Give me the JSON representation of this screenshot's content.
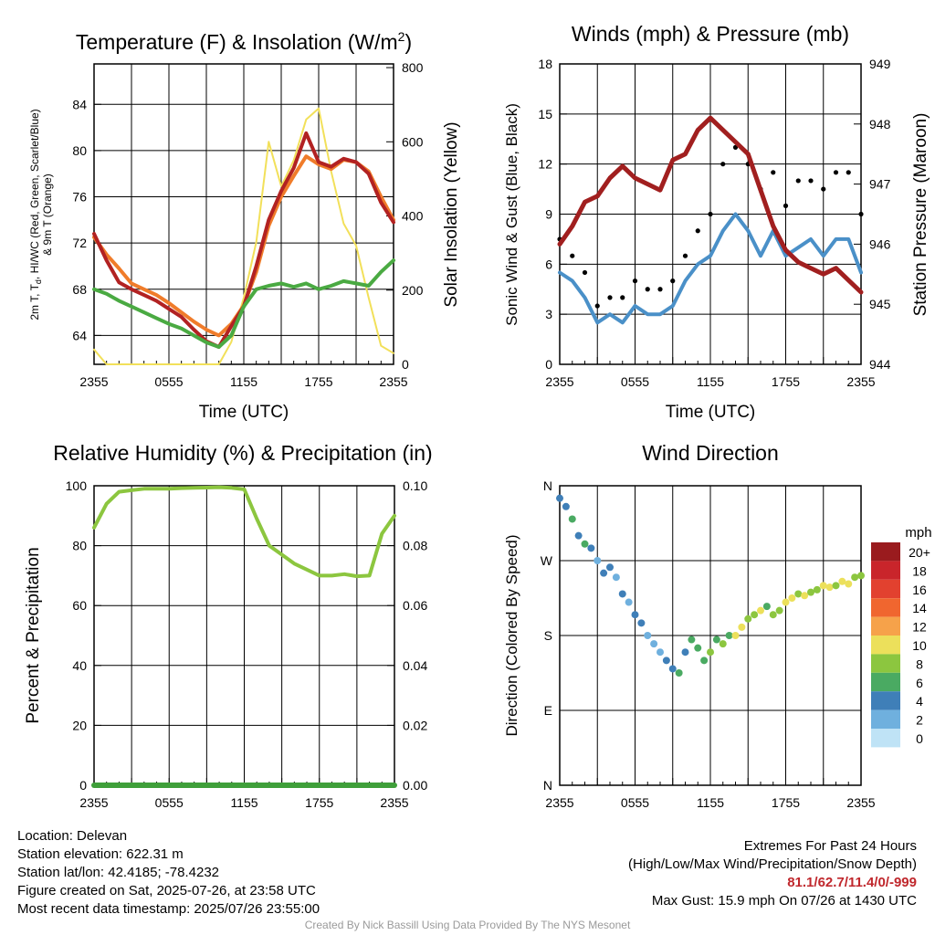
{
  "panels": {
    "temperature": {
      "title_main": "Temperature (F) & Insolation (W/m",
      "title_sup": "2",
      "title_end": ")",
      "ylabel_line1": "2m T, T",
      "ylabel_sub": "d",
      "ylabel_line1_end": ", HI/WC (Red, Green, Scarlet/Blue)",
      "ylabel_line2": "& 9m T (Orange)",
      "y2label": "Solar Insolation (Yellow)",
      "xlabel": "Time (UTC)"
    },
    "winds": {
      "title": "Winds (mph) & Pressure (mb)",
      "ylabel": "Sonic Wind & Gust (Blue, Black)",
      "y2label": "Station Pressure (Maroon)",
      "xlabel": "Time (UTC)"
    },
    "humidity": {
      "title": "Relative Humidity (%) & Precipitation (in)",
      "ylabel": "Percent & Precipitation"
    },
    "direction": {
      "title": "Wind Direction",
      "ylabel": "Direction (Colored By Speed)",
      "legend_title": "mph"
    }
  },
  "info": {
    "location": "Location: Delevan",
    "elevation": "Station elevation: 622.31 m",
    "latlon": "Station lat/lon: 42.4185; -78.4232",
    "created": "Figure created on Sat, 2025-07-26, at 23:58 UTC",
    "recent": "Most recent data timestamp: 2025/07/26 23:55:00"
  },
  "extremes": {
    "title": "Extremes For Past 24 Hours",
    "subtitle": "(High/Low/Max Wind/Precipitation/Snow Depth)",
    "values": "81.1/62.7/11.4/0/-999",
    "gust": "Max Gust: 15.9 mph On 07/26 at 1430 UTC"
  },
  "credit": "Created By Nick Bassill Using Data Provided By The NYS Mesonet",
  "chart_data": [
    {
      "type": "line",
      "title": "Temperature (F) & Insolation (W/m2)",
      "xlabel": "Time (UTC)",
      "ylabel": "2m T, Td, HI/WC (Red, Green, Scarlet/Blue) & 9m T (Orange)",
      "y2label": "Solar Insolation (Yellow)",
      "x_ticks": [
        "2355",
        "0555",
        "1155",
        "1755",
        "2355"
      ],
      "x_hours": [
        0,
        3,
        6,
        9,
        12,
        15,
        18,
        21,
        24
      ],
      "ylim": [
        61.5,
        87.5
      ],
      "y_ticks": [
        64,
        68,
        72,
        76,
        80,
        84
      ],
      "y2lim": [
        0,
        810
      ],
      "y2_ticks": [
        0,
        200,
        400,
        600,
        800
      ],
      "colors": {
        "temp": "#b22222",
        "temp9m": "#f07c2a",
        "dewpoint": "#4aaa42",
        "solar": "#f2e05a"
      },
      "series": [
        {
          "name": "2m T",
          "axis": "left",
          "x": [
            0,
            1,
            2,
            3,
            4,
            5,
            6,
            7,
            8,
            9,
            10,
            11,
            12,
            13,
            14,
            15,
            16,
            17,
            18,
            19,
            20,
            21,
            22,
            23,
            24
          ],
          "values": [
            72.8,
            70.5,
            68.6,
            68.0,
            67.5,
            67.0,
            66.3,
            65.6,
            64.5,
            63.5,
            63.0,
            64.8,
            66.5,
            70.0,
            74.0,
            76.5,
            78.5,
            81.5,
            79.0,
            78.6,
            79.3,
            79.0,
            78.0,
            75.5,
            73.8
          ]
        },
        {
          "name": "9m T",
          "axis": "left",
          "x": [
            0,
            1,
            2,
            3,
            4,
            5,
            6,
            7,
            8,
            9,
            10,
            11,
            12,
            13,
            14,
            15,
            16,
            17,
            18,
            19,
            20,
            21,
            22,
            23,
            24
          ],
          "values": [
            72.5,
            71.0,
            69.8,
            68.5,
            68.0,
            67.5,
            66.8,
            66.0,
            65.2,
            64.5,
            64.0,
            65.0,
            66.6,
            69.5,
            73.5,
            76.0,
            77.8,
            79.5,
            78.8,
            78.4,
            79.2,
            79.0,
            78.2,
            76.0,
            74.0
          ]
        },
        {
          "name": "2m Td",
          "axis": "left",
          "x": [
            0,
            1,
            2,
            3,
            4,
            5,
            6,
            7,
            8,
            9,
            10,
            11,
            12,
            13,
            14,
            15,
            16,
            17,
            18,
            19,
            20,
            21,
            22,
            23,
            24
          ],
          "values": [
            68.0,
            67.6,
            67.0,
            66.5,
            66.0,
            65.5,
            65.0,
            64.6,
            64.0,
            63.4,
            63.0,
            64.0,
            66.5,
            68.0,
            68.3,
            68.5,
            68.2,
            68.5,
            68.0,
            68.3,
            68.7,
            68.5,
            68.3,
            69.5,
            70.5
          ]
        },
        {
          "name": "Solar Insolation",
          "axis": "right",
          "x": [
            0,
            1,
            2,
            3,
            4,
            5,
            6,
            7,
            8,
            9,
            10,
            11,
            12,
            13,
            14,
            15,
            16,
            17,
            18,
            19,
            20,
            21,
            22,
            23,
            24
          ],
          "values": [
            40,
            0,
            0,
            0,
            0,
            0,
            0,
            0,
            0,
            0,
            0,
            60,
            180,
            330,
            600,
            480,
            550,
            660,
            690,
            520,
            380,
            320,
            180,
            50,
            30
          ]
        }
      ]
    },
    {
      "type": "line",
      "title": "Winds (mph) & Pressure (mb)",
      "xlabel": "Time (UTC)",
      "ylabel": "Sonic Wind & Gust (Blue, Black)",
      "y2label": "Station Pressure (Maroon)",
      "x_ticks": [
        "2355",
        "0555",
        "1155",
        "1755",
        "2355"
      ],
      "ylim": [
        0,
        18
      ],
      "y_ticks": [
        0,
        3,
        6,
        9,
        12,
        15,
        18
      ],
      "y2lim": [
        944,
        949
      ],
      "y2_ticks": [
        944,
        945,
        946,
        947,
        948,
        949
      ],
      "colors": {
        "wind": "#4a90c8",
        "gust": "#000000",
        "pressure": "#a11f1f"
      },
      "series": [
        {
          "name": "Sonic Wind",
          "axis": "left",
          "x": [
            0,
            1,
            2,
            3,
            4,
            5,
            6,
            7,
            8,
            9,
            10,
            11,
            12,
            13,
            14,
            15,
            16,
            17,
            18,
            19,
            20,
            21,
            22,
            23,
            24
          ],
          "values": [
            5.5,
            5.0,
            4.0,
            2.5,
            3.0,
            2.5,
            3.5,
            3.0,
            3.0,
            3.5,
            5.0,
            6.0,
            6.5,
            8.0,
            9.0,
            8.0,
            6.5,
            8.0,
            6.5,
            7.0,
            7.5,
            6.5,
            7.5,
            7.5,
            5.5
          ]
        },
        {
          "name": "Gust",
          "axis": "left",
          "x": [
            0,
            1,
            2,
            3,
            4,
            5,
            6,
            7,
            8,
            9,
            10,
            11,
            12,
            13,
            14,
            15,
            16,
            17,
            18,
            19,
            20,
            21,
            22,
            23,
            24
          ],
          "values": [
            7.5,
            6.5,
            5.5,
            3.5,
            4.0,
            4.0,
            5.0,
            4.5,
            4.5,
            5.0,
            6.5,
            8.0,
            9.0,
            12.0,
            13.0,
            12.0,
            10.5,
            11.5,
            9.5,
            11.0,
            11.0,
            10.5,
            11.5,
            11.5,
            9.0
          ]
        },
        {
          "name": "Station Pressure",
          "axis": "right",
          "x": [
            0,
            1,
            2,
            3,
            4,
            5,
            6,
            7,
            8,
            9,
            10,
            11,
            12,
            13,
            14,
            15,
            16,
            17,
            18,
            19,
            20,
            21,
            22,
            23,
            24
          ],
          "values": [
            946.0,
            946.3,
            946.7,
            946.8,
            947.1,
            947.3,
            947.1,
            947.0,
            946.9,
            947.4,
            947.5,
            947.9,
            948.1,
            947.9,
            947.7,
            947.5,
            946.9,
            946.3,
            945.9,
            945.7,
            945.6,
            945.5,
            945.6,
            945.4,
            945.2
          ]
        }
      ]
    },
    {
      "type": "line",
      "title": "Relative Humidity (%) & Precipitation (in)",
      "ylabel": "Percent & Precipitation",
      "x_ticks": [
        "2355",
        "0555",
        "1155",
        "1755",
        "2355"
      ],
      "ylim": [
        0,
        100
      ],
      "y_ticks": [
        0,
        20,
        40,
        60,
        80,
        100
      ],
      "y2lim": [
        0,
        0.1
      ],
      "y2_ticks": [
        "0.00",
        "0.02",
        "0.04",
        "0.06",
        "0.08",
        "0.10"
      ],
      "colors": {
        "rh": "#8cc63f",
        "precip": "#3f9f3a"
      },
      "series": [
        {
          "name": "Relative Humidity",
          "axis": "left",
          "x": [
            0,
            1,
            2,
            3,
            4,
            5,
            6,
            7,
            8,
            9,
            10,
            11,
            12,
            13,
            14,
            15,
            16,
            17,
            18,
            19,
            20,
            21,
            22,
            23,
            24
          ],
          "values": [
            86,
            94,
            98,
            98.5,
            99,
            99,
            99,
            99.2,
            99.3,
            99.4,
            99.5,
            99.3,
            98.8,
            89,
            80,
            77,
            74,
            72,
            70,
            70,
            70.5,
            69.8,
            70,
            84,
            90
          ]
        },
        {
          "name": "Precipitation",
          "axis": "right",
          "x": [
            0,
            24
          ],
          "values": [
            0,
            0
          ]
        }
      ]
    },
    {
      "type": "scatter",
      "title": "Wind Direction",
      "ylabel": "Direction (Colored By Speed)",
      "x_ticks": [
        "2355",
        "0555",
        "1155",
        "1755",
        "2355"
      ],
      "y_ticks": [
        "N",
        "E",
        "S",
        "W",
        "N"
      ],
      "ylim": [
        0,
        360
      ],
      "legend": {
        "title": "mph",
        "labels": [
          "20+",
          "18",
          "16",
          "14",
          "12",
          "10",
          "8",
          "6",
          "4",
          "2",
          "0"
        ],
        "colors": [
          "#9a1b1e",
          "#c9252b",
          "#e2412f",
          "#f0662f",
          "#f6a24a",
          "#ece05b",
          "#8cc63f",
          "#4aaa62",
          "#3f7fb8",
          "#6fb0de",
          "#bfe3f6"
        ]
      },
      "series": [
        {
          "name": "Direction",
          "x": [
            0,
            0.5,
            1,
            1.5,
            2,
            2.5,
            3,
            3.5,
            4,
            4.5,
            5,
            5.5,
            6,
            6.5,
            7,
            7.5,
            8,
            8.5,
            9,
            9.5,
            10,
            10.5,
            11,
            11.5,
            12,
            12.5,
            13,
            13.5,
            14,
            14.5,
            15,
            15.5,
            16,
            16.5,
            17,
            17.5,
            18,
            18.5,
            19,
            19.5,
            20,
            20.5,
            21,
            21.5,
            22,
            22.5,
            23,
            23.5,
            24
          ],
          "values": [
            345,
            335,
            320,
            300,
            290,
            285,
            270,
            255,
            262,
            250,
            230,
            220,
            205,
            195,
            180,
            170,
            160,
            150,
            140,
            135,
            160,
            175,
            165,
            150,
            160,
            175,
            170,
            180,
            180,
            190,
            200,
            205,
            210,
            215,
            205,
            210,
            220,
            225,
            230,
            228,
            232,
            235,
            240,
            238,
            240,
            245,
            242,
            250,
            252
          ],
          "speeds": [
            3,
            4,
            5,
            4,
            6,
            4,
            2,
            3,
            4,
            2,
            3,
            2,
            3,
            4,
            2,
            1,
            2,
            3,
            4,
            5,
            4,
            5,
            6,
            5,
            7,
            6,
            8,
            6,
            9,
            10,
            8,
            7,
            9,
            6,
            8,
            7,
            9,
            10,
            8,
            9,
            7,
            8,
            9,
            10,
            8,
            9,
            10,
            8,
            7
          ]
        }
      ]
    }
  ]
}
